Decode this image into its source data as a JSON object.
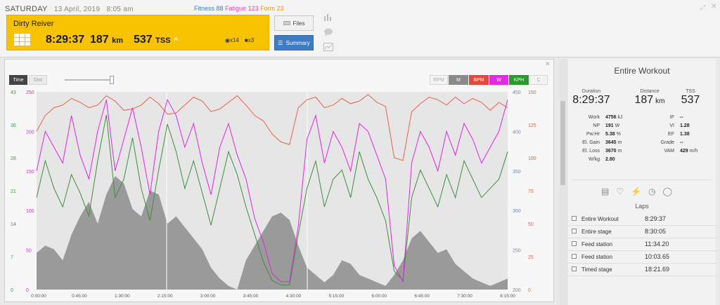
{
  "header": {
    "weekday": "SATURDAY",
    "date": "13 April, 2019",
    "time": "8:05 am",
    "fitness_label": "Fitness 88",
    "fatigue_label": "Fatigue 123",
    "form_label": "Form 23",
    "fitness_color": "#3d7bc2",
    "fatigue_color": "#e044d0",
    "form_color": "#e89a00"
  },
  "card": {
    "title": "Dirty Reiver",
    "duration": "8:29:37",
    "distance": "187",
    "distance_unit": "km",
    "tss": "537",
    "tss_unit": "TSS",
    "tss_arrow": "^",
    "pr_count": "x14",
    "comment_count": "x3",
    "bg_color": "#f7c300"
  },
  "buttons": {
    "files": "Files",
    "summary": "Summary"
  },
  "chart_toolbar": {
    "time": "Time",
    "dist": "Dist",
    "series_buttons": [
      "RPM",
      "M",
      "BPM",
      "W",
      "KPH",
      "C"
    ]
  },
  "right_panel": {
    "title": "Entire Workout",
    "duration_label": "Duration",
    "duration": "8:29:37",
    "distance_label": "Distance",
    "distance": "187",
    "distance_unit": "km",
    "tss_label": "TSS",
    "tss": "537",
    "left_stats": [
      {
        "label": "Work",
        "value": "4756",
        "unit": "kJ"
      },
      {
        "label": "NP",
        "value": "191",
        "unit": "W"
      },
      {
        "label": "Pw:Hr",
        "value": "5.38",
        "unit": "%"
      },
      {
        "label": "El. Gain",
        "value": "3645",
        "unit": "m"
      },
      {
        "label": "El. Loss",
        "value": "3670",
        "unit": "m"
      },
      {
        "label": "W/kg",
        "value": "2.80",
        "unit": ""
      }
    ],
    "right_stats": [
      {
        "label": "IF",
        "value": "--",
        "unit": ""
      },
      {
        "label": "VI",
        "value": "1.28",
        "unit": ""
      },
      {
        "label": "EF",
        "value": "1.38",
        "unit": ""
      },
      {
        "label": "Grade",
        "value": "--",
        "unit": ""
      },
      {
        "label": "VAM",
        "value": "429",
        "unit": "m/h"
      }
    ],
    "laps_title": "Laps",
    "laps": [
      {
        "name": "Entire Workout",
        "time": "8:29:37"
      },
      {
        "name": "Entire stage",
        "time": "8:30:05"
      },
      {
        "name": "Feed station",
        "time": "11:34.20"
      },
      {
        "name": "Feed station",
        "time": "10:03.65"
      },
      {
        "name": "Timed stage",
        "time": "18:21.69"
      }
    ]
  },
  "chart_data": {
    "type": "line",
    "x_tick_labels": [
      "0:00:00",
      "0:45:00",
      "1:30:00",
      "2:15:00",
      "3:00:00",
      "3:45:00",
      "4:30:00",
      "5:15:00",
      "6:00:00",
      "6:45:00",
      "7:30:00",
      "8:15:00"
    ],
    "axes": {
      "kph": {
        "ticks": [
          "0",
          "7",
          "14",
          "21",
          "28",
          "36",
          "43"
        ],
        "color": "#3a9a3a"
      },
      "watts": {
        "ticks": [
          "0",
          "50",
          "100",
          "150",
          "200",
          "250"
        ],
        "color": "#e020e0"
      },
      "elevation": {
        "ticks": [
          "200",
          "250",
          "300",
          "350",
          "400",
          "450"
        ],
        "color": "#6b86b8"
      },
      "bpm": {
        "ticks": [
          "0",
          "25",
          "50",
          "75",
          "100",
          "125",
          "150"
        ],
        "color": "#e85a3a"
      }
    },
    "series": [
      {
        "name": "BPM",
        "color": "#e8604a",
        "values": [
          120,
          132,
          138,
          140,
          145,
          142,
          138,
          140,
          147,
          143,
          136,
          137,
          140,
          146,
          141,
          133,
          134,
          140,
          146,
          143,
          135,
          137,
          142,
          147,
          140,
          132,
          128,
          118,
          112,
          110,
          138,
          144,
          146,
          138,
          140,
          145,
          141,
          143,
          148,
          142,
          139,
          100,
          98,
          135,
          141,
          146,
          144,
          140,
          146,
          141,
          145,
          142,
          136,
          142,
          138
        ]
      },
      {
        "name": "W",
        "color": "#e224e0",
        "values": [
          150,
          200,
          180,
          160,
          220,
          170,
          140,
          200,
          240,
          150,
          190,
          230,
          180,
          120,
          200,
          240,
          220,
          180,
          210,
          160,
          120,
          180,
          210,
          170,
          140,
          90,
          60,
          20,
          10,
          10,
          80,
          190,
          220,
          160,
          200,
          180,
          150,
          210,
          200,
          170,
          140,
          30,
          10,
          160,
          200,
          180,
          150,
          200,
          170,
          210,
          190,
          160,
          180,
          200,
          240
        ]
      },
      {
        "name": "KPH",
        "color": "#3e8e3e",
        "values": [
          20,
          28,
          22,
          18,
          25,
          21,
          16,
          28,
          38,
          20,
          24,
          33,
          22,
          15,
          26,
          36,
          30,
          22,
          28,
          21,
          14,
          22,
          30,
          25,
          18,
          12,
          6,
          2,
          1,
          1,
          12,
          22,
          28,
          18,
          24,
          26,
          20,
          30,
          24,
          20,
          15,
          4,
          2,
          20,
          26,
          22,
          18,
          25,
          20,
          28,
          24,
          20,
          22,
          24,
          30
        ]
      },
      {
        "name": "Elevation",
        "color": "#8f8f8f",
        "values": [
          250,
          260,
          255,
          240,
          275,
          300,
          320,
          290,
          330,
          355,
          345,
          310,
          300,
          335,
          330,
          290,
          300,
          285,
          270,
          255,
          230,
          215,
          205,
          200,
          240,
          260,
          280,
          300,
          305,
          295,
          260,
          230,
          220,
          210,
          220,
          240,
          235,
          220,
          215,
          210,
          205,
          220,
          240,
          270,
          280,
          265,
          250,
          255,
          235,
          225,
          215,
          210,
          205,
          210,
          215
        ]
      }
    ]
  }
}
